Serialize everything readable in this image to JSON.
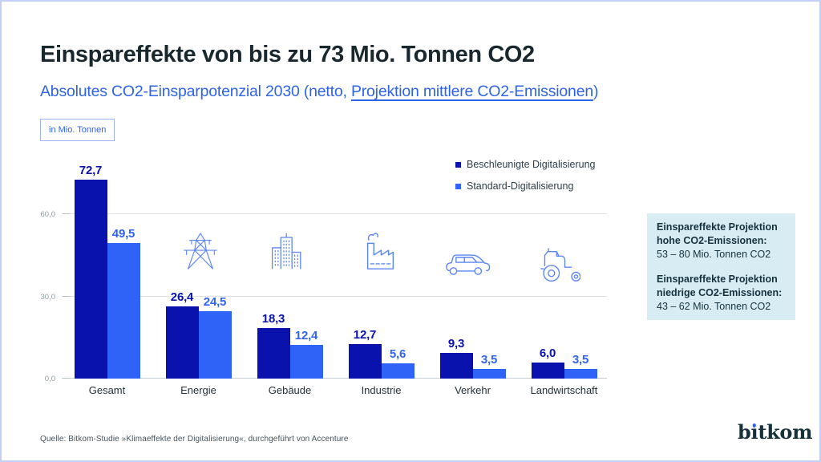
{
  "header": {
    "title": "Einspareffekte von bis zu 73 Mio. Tonnen CO2",
    "subtitle_prefix": "Absolutes CO2-Einsparpotenzial 2030 (netto, ",
    "subtitle_underlined": "Projektion mittlere CO2-Emissionen",
    "subtitle_suffix": ")",
    "unit_label": "in Mio. Tonnen"
  },
  "legend": {
    "items": [
      {
        "label": "Beschleunigte Digitalisierung",
        "color": "#0912ad"
      },
      {
        "label": "Standard-Digitalisierung",
        "color": "#2f63f7"
      }
    ]
  },
  "chart_data": {
    "type": "bar",
    "title": "Absolutes CO2-Einsparpotenzial 2030 (netto, Projektion mittlere CO2-Emissionen)",
    "unit": "in Mio. Tonnen",
    "categories": [
      "Gesamt",
      "Energie",
      "Gebäude",
      "Industrie",
      "Verkehr",
      "Landwirtschaft"
    ],
    "series": [
      {
        "name": "Beschleunigte Digitalisierung",
        "color": "#0912ad",
        "values": [
          72.7,
          26.4,
          18.3,
          12.7,
          9.3,
          6.0
        ]
      },
      {
        "name": "Standard-Digitalisierung",
        "color": "#2f63f7",
        "values": [
          49.5,
          24.5,
          12.4,
          5.6,
          3.5,
          3.5
        ]
      }
    ],
    "value_labels": [
      [
        "72,7",
        "26,4",
        "18,3",
        "12,7",
        "9,3",
        "6,0"
      ],
      [
        "49,5",
        "24,5",
        "12,4",
        "5,6",
        "3,5",
        "3,5"
      ]
    ],
    "y_ticks": [
      "0,0",
      "30,0",
      "60,0"
    ],
    "y_tick_values": [
      0,
      30,
      60
    ],
    "ylim": [
      0,
      80
    ],
    "grid": true,
    "legend_position": "top-right",
    "category_icons": [
      null,
      "power-pylon",
      "buildings",
      "factory",
      "car",
      "tractor"
    ]
  },
  "infobox": {
    "block1_title_line1": "Einspareffekte Projektion",
    "block1_title_line2": "hohe CO2-Emissionen:",
    "block1_value": "53 – 80 Mio. Tonnen CO2",
    "block2_title_line1": "Einspareffekte Projektion",
    "block2_title_line2": "niedrige CO2-Emissionen:",
    "block2_value": "43 – 62 Mio. Tonnen CO2"
  },
  "footer": {
    "source": "Quelle: Bitkom-Studie »Klimaeffekte der Digitalisierung«, durchgeführt von Accenture",
    "logo": "bitkom"
  },
  "colors": {
    "bar_dark": "#0912ad",
    "bar_light": "#2f63f7",
    "accent_blue": "#2e63e8",
    "icon_blue": "#5e86f3",
    "infobox_bg": "#d8edf3",
    "title_text": "#19282f"
  }
}
